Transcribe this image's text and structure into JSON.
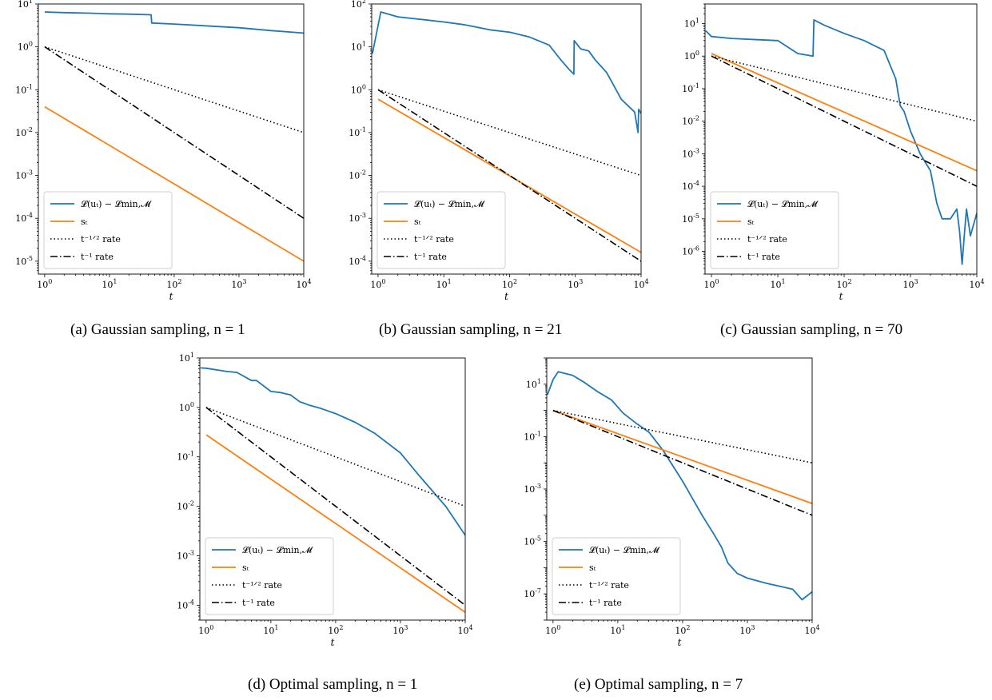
{
  "colors": {
    "loss": "#1f77b4",
    "step": "#ff7f0e",
    "rate": "#000000",
    "frame": "#000000"
  },
  "legend_labels": [
    "𝓛(uₜ) − 𝓛min,𝓜",
    "sₜ",
    "t⁻¹ᐟ² rate",
    "t⁻¹ rate"
  ],
  "captions": [
    "(a) Gaussian sampling, n = 1",
    "(b) Gaussian sampling, n = 21",
    "(c) Gaussian sampling, n = 70",
    "(d) Optimal sampling, n = 1",
    "(e) Optimal sampling, n = 7"
  ],
  "chart_data": [
    {
      "type": "line",
      "xlabel": "t",
      "x_scale": "log",
      "y_scale": "log",
      "xlim": [
        0.8,
        10000
      ],
      "ylim": [
        5e-06,
        10
      ],
      "xticks": [
        "10^0",
        "10^1",
        "10^2",
        "10^3",
        "10^4"
      ],
      "yticks": [
        "10^-5",
        "10^-4",
        "10^-3",
        "10^-2",
        "10^-1",
        "10^0",
        "10^1"
      ],
      "legend": "lower-left",
      "series": [
        {
          "name": "𝓛(uₜ) − 𝓛min,𝓜",
          "x": [
            1,
            2,
            5,
            10,
            20,
            44,
            45,
            100,
            300,
            1000,
            3000,
            10000
          ],
          "y": [
            6.5,
            6.3,
            6.1,
            5.9,
            5.8,
            5.6,
            3.6,
            3.4,
            3.1,
            2.8,
            2.4,
            2.1
          ]
        },
        {
          "name": "sₜ",
          "x": [
            1,
            10000
          ],
          "y": [
            0.04,
            1e-05
          ]
        },
        {
          "name": "t⁻¹ᐟ² rate",
          "x": [
            1,
            10000
          ],
          "y": [
            1,
            0.01
          ]
        },
        {
          "name": "t⁻¹ rate",
          "x": [
            1,
            10000
          ],
          "y": [
            1,
            0.0001
          ]
        }
      ]
    },
    {
      "type": "line",
      "xlabel": "t",
      "x_scale": "log",
      "y_scale": "log",
      "xlim": [
        0.8,
        10000
      ],
      "ylim": [
        5e-05,
        100
      ],
      "xticks": [
        "10^0",
        "10^1",
        "10^2",
        "10^3",
        "10^4"
      ],
      "yticks": [
        "10^-4",
        "10^-3",
        "10^-2",
        "10^-1",
        "10^0",
        "10^1",
        "10^2"
      ],
      "legend": "lower-left",
      "series": [
        {
          "name": "𝓛(uₜ) − 𝓛min,𝓜",
          "x": [
            0.82,
            1.1,
            2,
            5,
            10,
            20,
            50,
            100,
            200,
            400,
            600,
            800,
            950,
            960,
            1200,
            1600,
            2000,
            3000,
            5000,
            8000,
            9000,
            9200,
            10000
          ],
          "y": [
            7,
            65,
            50,
            43,
            38,
            33,
            25,
            22,
            17,
            11,
            5,
            3,
            2.3,
            14,
            9,
            8,
            5,
            2.5,
            0.6,
            0.3,
            0.1,
            0.35,
            0.28
          ]
        },
        {
          "name": "sₜ",
          "x": [
            1,
            10000
          ],
          "y": [
            0.6,
            0.00016
          ]
        },
        {
          "name": "t⁻¹ᐟ² rate",
          "x": [
            1,
            10000
          ],
          "y": [
            1,
            0.01
          ]
        },
        {
          "name": "t⁻¹ rate",
          "x": [
            1,
            10000
          ],
          "y": [
            1,
            0.0001
          ]
        }
      ]
    },
    {
      "type": "line",
      "xlabel": "t",
      "x_scale": "log",
      "y_scale": "log",
      "xlim": [
        0.8,
        10000
      ],
      "ylim": [
        2e-07,
        40
      ],
      "xticks": [
        "10^0",
        "10^1",
        "10^2",
        "10^3",
        "10^4"
      ],
      "yticks": [
        "10^-6",
        "10^-5",
        "10^-4",
        "10^-3",
        "10^-2",
        "10^-1",
        "10^0",
        "10^1"
      ],
      "legend": "lower-left",
      "series": [
        {
          "name": "𝓛(uₜ) − 𝓛min,𝓜",
          "x": [
            0.82,
            1,
            2,
            5,
            10,
            20,
            34,
            35,
            50,
            100,
            200,
            400,
            600,
            700,
            800,
            1000,
            1400,
            2000,
            2500,
            3000,
            4000,
            5000,
            5500,
            6000,
            6500,
            7000,
            8000,
            10000
          ],
          "y": [
            6,
            4,
            3.5,
            3.2,
            3,
            1.2,
            1,
            13,
            9,
            5,
            3,
            1.5,
            0.2,
            0.03,
            0.02,
            0.005,
            0.001,
            0.0003,
            3e-05,
            1e-05,
            1e-05,
            2e-05,
            4e-06,
            4e-07,
            3.5e-06,
            2e-05,
            3e-06,
            1.5e-05
          ]
        },
        {
          "name": "sₜ",
          "x": [
            1,
            10000
          ],
          "y": [
            1.2,
            0.0003
          ]
        },
        {
          "name": "t⁻¹ᐟ² rate",
          "x": [
            1,
            10000
          ],
          "y": [
            1,
            0.01
          ]
        },
        {
          "name": "t⁻¹ rate",
          "x": [
            1,
            10000
          ],
          "y": [
            1,
            0.0001
          ]
        }
      ]
    },
    {
      "type": "line",
      "xlabel": "t",
      "x_scale": "log",
      "y_scale": "log",
      "xlim": [
        0.8,
        10000
      ],
      "ylim": [
        5e-05,
        10
      ],
      "xticks": [
        "10^0",
        "10^1",
        "10^2",
        "10^3",
        "10^4"
      ],
      "yticks": [
        "10^-4",
        "10^-3",
        "10^-2",
        "10^-1",
        "10^0",
        "10^1"
      ],
      "legend": "lower-left",
      "series": [
        {
          "name": "𝓛(uₜ) − 𝓛min,𝓜",
          "x": [
            0.82,
            1,
            2,
            3,
            5,
            6,
            10,
            14,
            20,
            28,
            40,
            60,
            100,
            200,
            400,
            1000,
            2000,
            5000,
            10000
          ],
          "y": [
            6.3,
            6.2,
            5.4,
            5.1,
            3.5,
            3.5,
            2.1,
            2.0,
            1.8,
            1.3,
            1.1,
            0.95,
            0.75,
            0.5,
            0.3,
            0.12,
            0.04,
            0.01,
            0.0026
          ]
        },
        {
          "name": "sₜ",
          "x": [
            1,
            10000
          ],
          "y": [
            0.28,
            7.2e-05
          ]
        },
        {
          "name": "t⁻¹ᐟ² rate",
          "x": [
            1,
            10000
          ],
          "y": [
            1,
            0.01
          ]
        },
        {
          "name": "t⁻¹ rate",
          "x": [
            1,
            10000
          ],
          "y": [
            1,
            0.0001
          ]
        }
      ]
    },
    {
      "type": "line",
      "xlabel": "t",
      "x_scale": "log",
      "y_scale": "log",
      "xlim": [
        0.8,
        10000
      ],
      "ylim": [
        1e-08,
        100
      ],
      "xticks": [
        "10^0",
        "10^1",
        "10^2",
        "10^3",
        "10^4"
      ],
      "yticks": [
        "10^-7",
        "10^-5",
        "10^-3",
        "10^-1",
        "10^1"
      ],
      "legend": "lower-left",
      "series": [
        {
          "name": "𝓛(uₜ) − 𝓛min,𝓜",
          "x": [
            0.82,
            1,
            1.2,
            2,
            3,
            5,
            8,
            12,
            20,
            30,
            50,
            100,
            200,
            300,
            400,
            500,
            700,
            1000,
            2000,
            3000,
            5000,
            7000,
            10000
          ],
          "y": [
            4,
            15,
            30,
            22,
            12,
            5,
            2.5,
            0.8,
            0.3,
            0.15,
            0.03,
            0.002,
            0.0001,
            2e-05,
            6e-06,
            1.5e-06,
            6e-07,
            4e-07,
            2.5e-07,
            2e-07,
            1.5e-07,
            6e-08,
            1.2e-07
          ]
        },
        {
          "name": "sₜ",
          "x": [
            1,
            10000
          ],
          "y": [
            1,
            0.00028
          ]
        },
        {
          "name": "t⁻¹ᐟ² rate",
          "x": [
            1,
            10000
          ],
          "y": [
            1,
            0.01
          ]
        },
        {
          "name": "t⁻¹ rate",
          "x": [
            1,
            10000
          ],
          "y": [
            1,
            0.0001
          ]
        }
      ]
    }
  ]
}
